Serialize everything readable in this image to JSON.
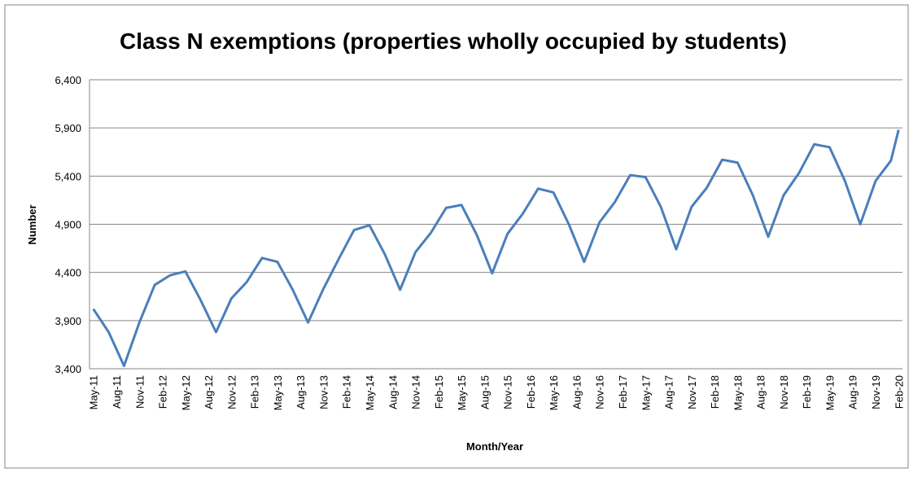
{
  "chart_data": {
    "type": "line",
    "title": "Class N exemptions (properties wholly occupied by students)",
    "x_label": "Month/Year",
    "y_label": "Number",
    "categories": [
      "May-11",
      null,
      null,
      "Aug-11",
      null,
      null,
      "Nov-11",
      null,
      null,
      "Feb-12",
      null,
      null,
      "May-12",
      null,
      null,
      "Aug-12",
      null,
      null,
      "Nov-12",
      null,
      null,
      "Feb-13",
      null,
      null,
      "May-13",
      null,
      null,
      "Aug-13",
      null,
      null,
      "Nov-13",
      null,
      null,
      "Feb-14",
      null,
      null,
      "May-14",
      null,
      null,
      "Aug-14",
      null,
      null,
      "Nov-14",
      null,
      null,
      "Feb-15",
      null,
      null,
      "May-15",
      null,
      null,
      "Aug-15",
      null,
      null,
      "Nov-15",
      null,
      null,
      "Feb-16",
      null,
      null,
      "May-16",
      null,
      null,
      "Aug-16",
      null,
      null,
      "Nov-16",
      null,
      null,
      "Feb-17",
      null,
      null,
      "May-17",
      null,
      null,
      "Aug-17",
      null,
      null,
      "Nov-17",
      null,
      null,
      "Feb-18",
      null,
      null,
      "May-18",
      null,
      null,
      "Aug-18",
      null,
      null,
      "Nov-18",
      null,
      null,
      "Feb-19",
      null,
      null,
      "May-19",
      null,
      null,
      "Aug-19",
      null,
      null,
      "Nov-19",
      null,
      null,
      "Feb-20"
    ],
    "values": [
      4020,
      3900,
      3780,
      3605,
      3430,
      3655,
      3880,
      4075,
      4270,
      4320,
      4370,
      4390,
      4410,
      4260,
      4110,
      3945,
      3780,
      3955,
      4130,
      4215,
      4300,
      4425,
      4550,
      4530,
      4510,
      4365,
      4220,
      4050,
      3880,
      4055,
      4230,
      4385,
      4540,
      4690,
      4840,
      4865,
      4890,
      4740,
      4590,
      4405,
      4220,
      4415,
      4610,
      4710,
      4810,
      4940,
      5070,
      5085,
      5100,
      4945,
      4790,
      4590,
      4390,
      4595,
      4800,
      4905,
      5010,
      5140,
      5270,
      5250,
      5230,
      5065,
      4900,
      4705,
      4510,
      4715,
      4920,
      5025,
      5130,
      5270,
      5410,
      5400,
      5390,
      5235,
      5080,
      4860,
      4640,
      4860,
      5080,
      5180,
      5280,
      5425,
      5570,
      5555,
      5540,
      5370,
      5200,
      4985,
      4770,
      4985,
      5200,
      5315,
      5430,
      5580,
      5730,
      5715,
      5700,
      5525,
      5350,
      5125,
      4900,
      5125,
      5350,
      5455,
      5560,
      5880
    ],
    "color": "#4a7ebb",
    "ylim": [
      3400,
      6400
    ],
    "yticks": [
      {
        "value": 3400,
        "label": "3,400"
      },
      {
        "value": 3900,
        "label": "3,900"
      },
      {
        "value": 4400,
        "label": "4,400"
      },
      {
        "value": 4900,
        "label": "4,900"
      },
      {
        "value": 5400,
        "label": "5,400"
      },
      {
        "value": 5900,
        "label": "5,900"
      },
      {
        "value": 6400,
        "label": "6,400"
      }
    ],
    "grid": true
  }
}
